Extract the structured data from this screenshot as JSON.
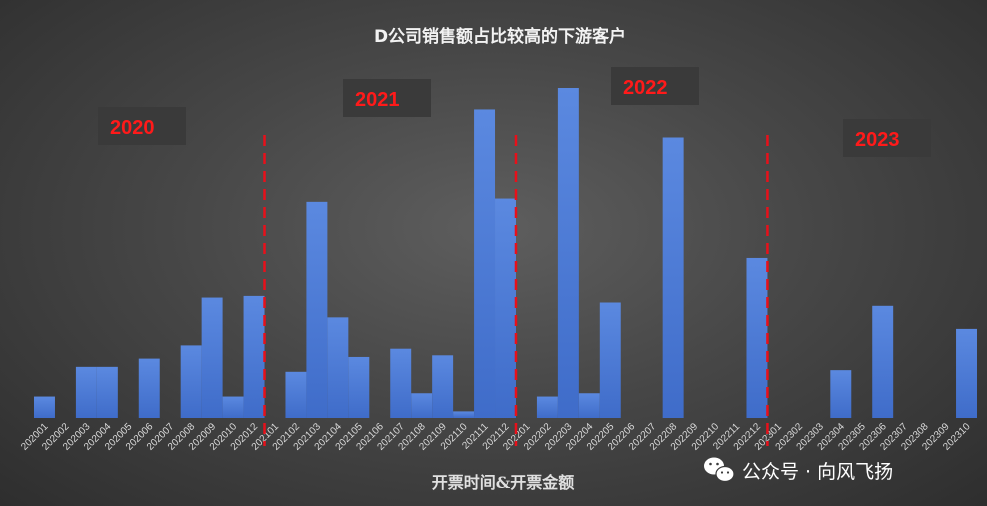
{
  "chart_data": {
    "type": "bar",
    "title": "D公司销售额占比较高的下游客户",
    "xlabel": "开票时间&开票金额",
    "ylabel": "",
    "ylim": [
      0,
      100
    ],
    "grid": false,
    "legend": "none",
    "bar_color": "#4a78d4",
    "categories": [
      "202001",
      "202002",
      "202003",
      "202004",
      "202005",
      "202006",
      "202007",
      "202008",
      "202009",
      "202010",
      "202012",
      "202101",
      "202102",
      "202103",
      "202104",
      "202105",
      "202106",
      "202107",
      "202108",
      "202109",
      "202110",
      "202111",
      "202112",
      "202201",
      "202202",
      "202203",
      "202204",
      "202205",
      "202206",
      "202207",
      "202208",
      "202209",
      "202210",
      "202211",
      "202212",
      "202301",
      "202302",
      "202303",
      "202304",
      "202305",
      "202306",
      "202307",
      "202308",
      "202309",
      "202310"
    ],
    "values": [
      6.5,
      0,
      15.5,
      15.5,
      0,
      18,
      0,
      22,
      36.5,
      6.5,
      37,
      0,
      14,
      65.5,
      30.5,
      18.5,
      0,
      21,
      7.5,
      19,
      2,
      93.5,
      66.5,
      0,
      6.5,
      100,
      7.5,
      35,
      0,
      0,
      85,
      0,
      0,
      0,
      48.5,
      0,
      0,
      0,
      14.5,
      0,
      34,
      0,
      0,
      0,
      27
    ],
    "year_labels": [
      "2020",
      "2021",
      "2022",
      "2023"
    ],
    "dividers_after": [
      "202012",
      "202112",
      "202212"
    ]
  },
  "watermark": {
    "text": "公众号 · 向风飞扬",
    "icon": "wechat-icon"
  }
}
